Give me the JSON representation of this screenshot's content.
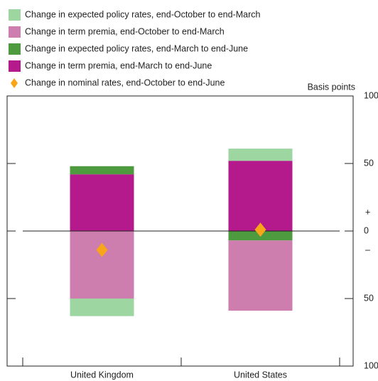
{
  "chart_data": {
    "type": "bar",
    "stacked": true,
    "categories": [
      "United Kingdom",
      "United States"
    ],
    "y_label": "Basis points",
    "sign_labels": [
      "+",
      "–"
    ],
    "ylim": [
      -100,
      100
    ],
    "yticks": [
      {
        "value": -100,
        "label": "100"
      },
      {
        "value": -50,
        "label": "50"
      },
      0,
      50,
      100
    ],
    "series": [
      {
        "name": "Change in expected policy rates, end-October to end-March",
        "color": "#9dd6a0",
        "values": [
          -13,
          9
        ]
      },
      {
        "name": "Change in term premia, end-October to end-March",
        "color": "#cd7eaf",
        "values": [
          -50,
          -52
        ]
      },
      {
        "name": "Change in expected policy rates, end-March to end-June",
        "color": "#4e9a3e",
        "values": [
          6,
          -7
        ]
      },
      {
        "name": "Change in term premia, end-March to end-June",
        "color": "#b41a8c",
        "values": [
          42,
          52
        ]
      },
      {
        "name": "Change in nominal rates, end-October to end-June",
        "color": "#f9a51a",
        "marker": "diamond",
        "values": [
          -14,
          1
        ]
      }
    ]
  }
}
